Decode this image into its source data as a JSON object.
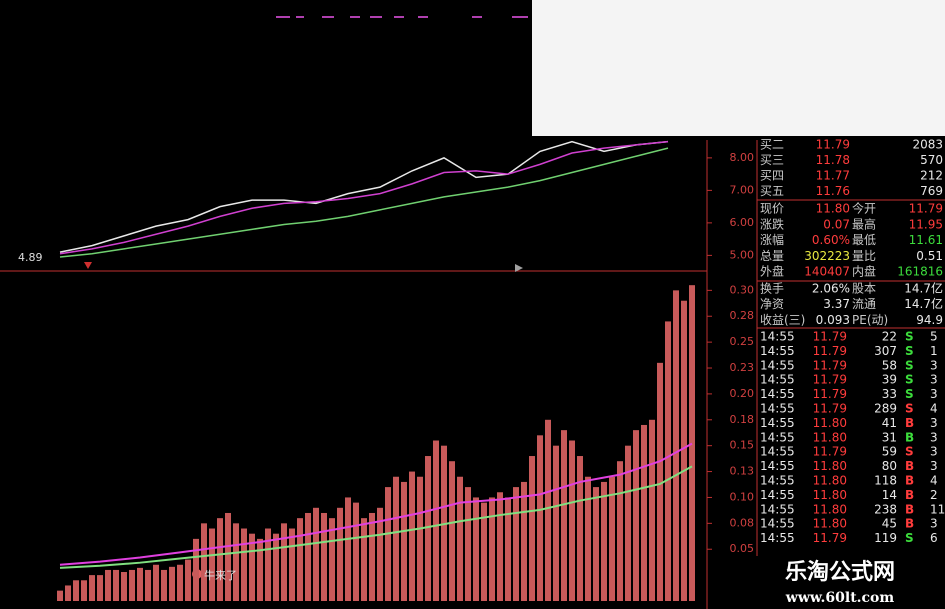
{
  "chart_data": [
    {
      "type": "line",
      "ylim": [
        4.55,
        8.55
      ],
      "yticks": [
        {
          "value": 5,
          "label": "5.00"
        },
        {
          "value": 6,
          "label": "6.00"
        },
        {
          "value": 7,
          "label": "7.00"
        },
        {
          "value": 8,
          "label": "8.00"
        }
      ],
      "annotations": [
        "4.89"
      ],
      "series": [
        {
          "color": "#e8e8e8",
          "x": [
            0,
            4,
            8,
            12,
            16,
            20,
            24,
            28,
            32,
            36,
            40,
            44,
            48,
            52,
            56,
            60,
            64,
            68,
            72,
            76
          ],
          "values": [
            5.1,
            5.3,
            5.6,
            5.9,
            6.1,
            6.5,
            6.7,
            6.7,
            6.6,
            6.9,
            7.1,
            7.6,
            8.0,
            7.4,
            7.5,
            8.2,
            8.5,
            8.2,
            8.4,
            8.5
          ]
        },
        {
          "color": "#d040d0",
          "x": [
            0,
            4,
            8,
            12,
            16,
            20,
            24,
            28,
            32,
            36,
            40,
            44,
            48,
            52,
            56,
            60,
            64,
            68,
            72,
            76
          ],
          "values": [
            5.05,
            5.2,
            5.4,
            5.65,
            5.9,
            6.2,
            6.45,
            6.6,
            6.65,
            6.75,
            6.9,
            7.2,
            7.55,
            7.6,
            7.5,
            7.8,
            8.15,
            8.3,
            8.4,
            8.5
          ]
        },
        {
          "color": "#70d070",
          "x": [
            0,
            4,
            8,
            12,
            16,
            20,
            24,
            28,
            32,
            36,
            40,
            44,
            48,
            52,
            56,
            60,
            64,
            68,
            72,
            76
          ],
          "values": [
            4.95,
            5.05,
            5.2,
            5.35,
            5.5,
            5.65,
            5.8,
            5.95,
            6.05,
            6.2,
            6.4,
            6.6,
            6.8,
            6.95,
            7.1,
            7.3,
            7.55,
            7.8,
            8.05,
            8.3
          ]
        }
      ]
    },
    {
      "type": "bar",
      "ylim": [
        0,
        0.31
      ],
      "yticks": [
        {
          "value": 0.05,
          "label": "0.05"
        },
        {
          "value": 0.075,
          "label": "0.08"
        },
        {
          "value": 0.1,
          "label": "0.10"
        },
        {
          "value": 0.125,
          "label": "0.13"
        },
        {
          "value": 0.15,
          "label": "0.15"
        },
        {
          "value": 0.175,
          "label": "0.18"
        },
        {
          "value": 0.2,
          "label": "0.20"
        },
        {
          "value": 0.225,
          "label": "0.23"
        },
        {
          "value": 0.25,
          "label": "0.25"
        },
        {
          "value": 0.275,
          "label": "0.28"
        },
        {
          "value": 0.3,
          "label": "0.30"
        }
      ],
      "color": "#c85a5a",
      "annotations": [
        "牛来了"
      ],
      "values": [
        0.01,
        0.015,
        0.02,
        0.02,
        0.025,
        0.025,
        0.03,
        0.03,
        0.028,
        0.03,
        0.032,
        0.03,
        0.035,
        0.03,
        0.033,
        0.035,
        0.04,
        0.06,
        0.075,
        0.07,
        0.08,
        0.085,
        0.075,
        0.07,
        0.065,
        0.06,
        0.07,
        0.065,
        0.075,
        0.07,
        0.08,
        0.085,
        0.09,
        0.085,
        0.08,
        0.09,
        0.1,
        0.095,
        0.08,
        0.085,
        0.09,
        0.11,
        0.12,
        0.115,
        0.125,
        0.12,
        0.14,
        0.155,
        0.15,
        0.135,
        0.12,
        0.11,
        0.1,
        0.095,
        0.1,
        0.105,
        0.1,
        0.11,
        0.115,
        0.14,
        0.16,
        0.175,
        0.15,
        0.165,
        0.155,
        0.14,
        0.12,
        0.11,
        0.115,
        0.12,
        0.135,
        0.15,
        0.165,
        0.17,
        0.175,
        0.23,
        0.27,
        0.3,
        0.29,
        0.305
      ],
      "series": [
        {
          "color": "#e040e0",
          "x": [
            0,
            5,
            10,
            15,
            20,
            25,
            30,
            35,
            40,
            45,
            50,
            55,
            60,
            65,
            70,
            75,
            79
          ],
          "values": [
            0.035,
            0.038,
            0.042,
            0.047,
            0.052,
            0.057,
            0.063,
            0.07,
            0.077,
            0.085,
            0.095,
            0.098,
            0.103,
            0.115,
            0.122,
            0.135,
            0.152
          ]
        },
        {
          "color": "#80e080",
          "x": [
            0,
            5,
            10,
            15,
            20,
            25,
            30,
            35,
            40,
            45,
            50,
            55,
            60,
            65,
            70,
            75,
            79
          ],
          "values": [
            0.032,
            0.034,
            0.037,
            0.041,
            0.045,
            0.049,
            0.054,
            0.059,
            0.064,
            0.07,
            0.077,
            0.083,
            0.088,
            0.097,
            0.104,
            0.113,
            0.13
          ]
        }
      ]
    }
  ],
  "order_book": [
    [
      "买二",
      "11.79",
      "2083"
    ],
    [
      "买三",
      "11.78",
      "570"
    ],
    [
      "买四",
      "11.77",
      "212"
    ],
    [
      "买五",
      "11.76",
      "769"
    ]
  ],
  "quote": [
    [
      "现价",
      "11.80",
      "今开",
      "11.79"
    ],
    [
      "涨跌",
      "0.07",
      "最高",
      "11.95"
    ],
    [
      "涨幅",
      "0.60%",
      "最低",
      "11.61"
    ],
    [
      "总量",
      "302223",
      "量比",
      "0.51"
    ],
    [
      "外盘",
      "140407",
      "内盘",
      "161816"
    ]
  ],
  "stats": [
    [
      "换手",
      "2.06%",
      "股本",
      "14.7亿"
    ],
    [
      "净资",
      "3.37",
      "流通",
      "14.7亿"
    ],
    [
      "收益(三)",
      "0.093",
      "PE(动)",
      "94.9"
    ]
  ],
  "trades": [
    [
      "14:55",
      "11.79",
      "22",
      "S",
      "5"
    ],
    [
      "14:55",
      "11.79",
      "307",
      "S",
      "1"
    ],
    [
      "14:55",
      "11.79",
      "58",
      "S",
      "3"
    ],
    [
      "14:55",
      "11.79",
      "39",
      "S",
      "3"
    ],
    [
      "14:55",
      "11.79",
      "33",
      "S",
      "3"
    ],
    [
      "14:55",
      "11.79",
      "289",
      "S",
      "4"
    ],
    [
      "14:55",
      "11.80",
      "41",
      "B",
      "3"
    ],
    [
      "14:55",
      "11.80",
      "31",
      "B",
      "3"
    ],
    [
      "14:55",
      "11.79",
      "59",
      "S",
      "3"
    ],
    [
      "14:55",
      "11.80",
      "80",
      "B",
      "3"
    ],
    [
      "14:55",
      "11.80",
      "118",
      "B",
      "4"
    ],
    [
      "14:55",
      "11.80",
      "14",
      "B",
      "2"
    ],
    [
      "14:55",
      "11.80",
      "238",
      "B",
      "11"
    ],
    [
      "14:55",
      "11.80",
      "45",
      "B",
      "3"
    ],
    [
      "14:55",
      "11.79",
      "119",
      "S",
      "6"
    ]
  ],
  "watermark": {
    "title": "乐淘公式网",
    "url": "www.60lt.com"
  }
}
